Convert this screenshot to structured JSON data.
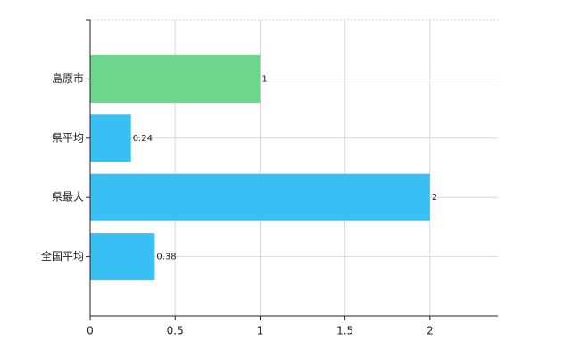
{
  "chart_data": {
    "type": "bar",
    "orientation": "horizontal",
    "categories": [
      "島原市",
      "県平均",
      "県最大",
      "全国平均"
    ],
    "values": [
      1,
      0.24,
      2,
      0.38
    ],
    "colors": [
      "#6dd58c",
      "#38c0f5",
      "#38c0f5",
      "#38c0f5"
    ],
    "xlim": [
      0,
      2.4
    ],
    "xticks": [
      0,
      0.5,
      1,
      1.5,
      2
    ],
    "grid": true
  }
}
